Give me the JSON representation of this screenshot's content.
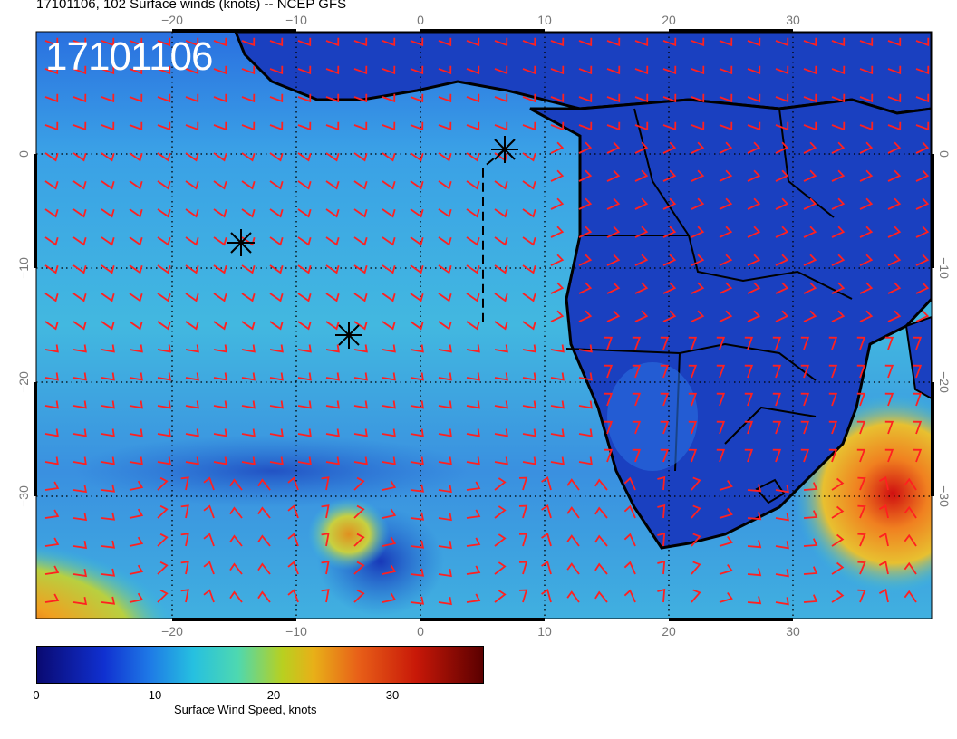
{
  "header": {
    "title": "17101106, 102 Surface winds (knots) -- NCEP GFS"
  },
  "map": {
    "stamp": "17101106",
    "lon_labels_top": [
      "−20",
      "−10",
      "0",
      "10",
      "20",
      "30"
    ],
    "lon_labels_bottom": [
      "−20",
      "−10",
      "0",
      "10",
      "20",
      "30"
    ],
    "lat_labels_left": [
      "0",
      "−10",
      "−20",
      "−30"
    ],
    "lat_labels_right": [
      "0",
      "−10",
      "−20",
      "−30"
    ],
    "wind_barb_color": "#ff2020",
    "coast_color": "#000000"
  },
  "colorbar": {
    "ticks": [
      "0",
      "10",
      "20",
      "30"
    ],
    "label": "Surface Wind Speed, knots"
  }
}
